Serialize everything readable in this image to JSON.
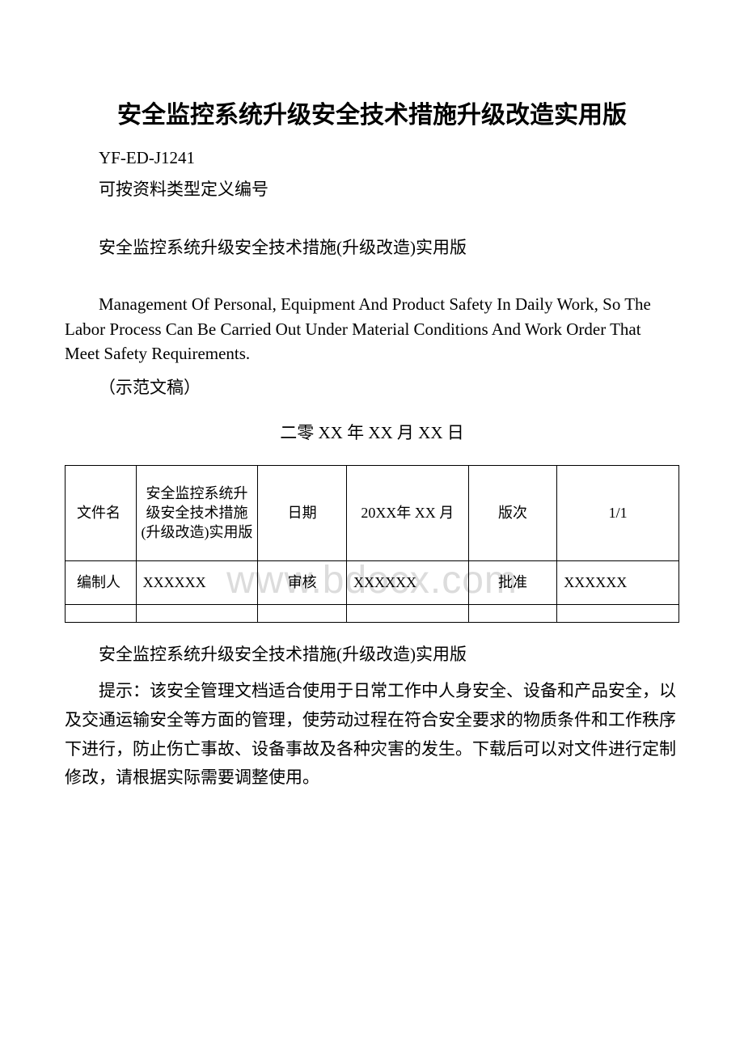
{
  "title": "安全监控系统升级安全技术措施升级改造实用版",
  "doc_code": "YF-ED-J1241",
  "note_line": "可按资料类型定义编号",
  "subtitle": "安全监控系统升级安全技术措施(升级改造)实用版",
  "english_desc": "Management Of Personal, Equipment And Product Safety In Daily Work, So The Labor Process Can Be Carried Out Under Material Conditions And Work Order That Meet Safety Requirements.",
  "sample_label": "（示范文稿）",
  "date_line": "二零 XX 年 XX 月 XX 日",
  "watermark": "www.bdocx.com",
  "table": {
    "row1": {
      "c1": "文件名",
      "c2": "安全监控系统升级安全技术措施(升级改造)实用版",
      "c3": "日期",
      "c4": "20XX年 XX 月",
      "c5": "版次",
      "c6": "1/1"
    },
    "row2": {
      "c1": "编制人",
      "c2": "XXXXXX",
      "c3": "审核",
      "c4": "XXXXXX",
      "c5": "批准",
      "c6": "XXXXXX"
    }
  },
  "body_title": "安全监控系统升级安全技术措施(升级改造)实用版",
  "body_para": "提示：该安全管理文档适合使用于日常工作中人身安全、设备和产品安全，以及交通运输安全等方面的管理，使劳动过程在符合安全要求的物质条件和工作秩序下进行，防止伤亡事故、设备事故及各种灾害的发生。下载后可以对文件进行定制修改，请根据实际需要调整使用。",
  "colors": {
    "text": "#000000",
    "background": "#ffffff",
    "watermark": "#dcdcdc",
    "border": "#000000"
  }
}
